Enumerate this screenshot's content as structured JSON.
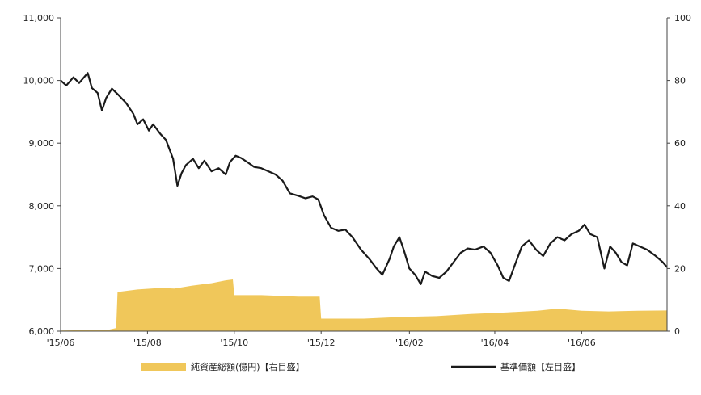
{
  "chart_data": {
    "type": "line",
    "title": "",
    "left_axis": {
      "range": [
        6000,
        11000
      ],
      "ticks": [
        6000,
        7000,
        8000,
        9000,
        10000,
        11000
      ],
      "tick_labels": [
        "6,000",
        "7,000",
        "8,000",
        "9,000",
        "10,000",
        "11,000"
      ]
    },
    "right_axis": {
      "range": [
        0,
        100
      ],
      "ticks": [
        0,
        20,
        40,
        60,
        80,
        100
      ],
      "tick_labels": [
        "0",
        "20",
        "40",
        "60",
        "80",
        "100"
      ]
    },
    "x_axis": {
      "range": [
        "2015-06-01",
        "2016-07-31"
      ],
      "ticks": [
        "2015-06-01",
        "2015-08-01",
        "2015-10-01",
        "2015-12-01",
        "2016-02-01",
        "2016-04-01",
        "2016-06-01"
      ],
      "tick_labels": [
        "'15/06",
        "'15/08",
        "'15/10",
        "'15/12",
        "'16/02",
        "'16/04",
        "'16/06"
      ]
    },
    "grid": false,
    "legend_position": "bottom",
    "series": [
      {
        "name": "純資産総額(億円)【右目盛】",
        "kind": "area",
        "axis": "right",
        "color": "#f0c75a",
        "points": [
          [
            "2015-06-01",
            0.2
          ],
          [
            "2015-06-20",
            0.3
          ],
          [
            "2015-07-05",
            0.5
          ],
          [
            "2015-07-10",
            1.0
          ],
          [
            "2015-07-11",
            12.5
          ],
          [
            "2015-07-25",
            13.3
          ],
          [
            "2015-08-10",
            13.8
          ],
          [
            "2015-08-20",
            13.6
          ],
          [
            "2015-09-01",
            14.5
          ],
          [
            "2015-09-15",
            15.3
          ],
          [
            "2015-09-25",
            16.2
          ],
          [
            "2015-09-30",
            16.5
          ],
          [
            "2015-10-01",
            11.5
          ],
          [
            "2015-10-20",
            11.5
          ],
          [
            "2015-11-15",
            11.0
          ],
          [
            "2015-11-30",
            11.0
          ],
          [
            "2015-12-01",
            4.0
          ],
          [
            "2015-12-31",
            4.0
          ],
          [
            "2016-01-25",
            4.5
          ],
          [
            "2016-02-20",
            4.8
          ],
          [
            "2016-03-15",
            5.5
          ],
          [
            "2016-04-10",
            6.0
          ],
          [
            "2016-05-01",
            6.5
          ],
          [
            "2016-05-15",
            7.2
          ],
          [
            "2016-06-01",
            6.5
          ],
          [
            "2016-06-20",
            6.3
          ],
          [
            "2016-07-10",
            6.5
          ],
          [
            "2016-07-31",
            6.6
          ]
        ]
      },
      {
        "name": "基準価額【左目盛】",
        "kind": "line",
        "axis": "left",
        "color": "#1a1a1a",
        "points": [
          [
            "2015-06-01",
            10000
          ],
          [
            "2015-06-05",
            9920
          ],
          [
            "2015-06-10",
            10050
          ],
          [
            "2015-06-14",
            9960
          ],
          [
            "2015-06-20",
            10120
          ],
          [
            "2015-06-23",
            9880
          ],
          [
            "2015-06-27",
            9800
          ],
          [
            "2015-06-30",
            9520
          ],
          [
            "2015-07-03",
            9720
          ],
          [
            "2015-07-07",
            9870
          ],
          [
            "2015-07-12",
            9760
          ],
          [
            "2015-07-17",
            9640
          ],
          [
            "2015-07-22",
            9470
          ],
          [
            "2015-07-25",
            9300
          ],
          [
            "2015-07-29",
            9380
          ],
          [
            "2015-08-02",
            9200
          ],
          [
            "2015-08-05",
            9300
          ],
          [
            "2015-08-10",
            9150
          ],
          [
            "2015-08-14",
            9050
          ],
          [
            "2015-08-19",
            8750
          ],
          [
            "2015-08-22",
            8320
          ],
          [
            "2015-08-25",
            8520
          ],
          [
            "2015-08-28",
            8650
          ],
          [
            "2015-09-02",
            8750
          ],
          [
            "2015-09-06",
            8600
          ],
          [
            "2015-09-10",
            8720
          ],
          [
            "2015-09-15",
            8550
          ],
          [
            "2015-09-20",
            8600
          ],
          [
            "2015-09-25",
            8500
          ],
          [
            "2015-09-28",
            8700
          ],
          [
            "2015-10-02",
            8800
          ],
          [
            "2015-10-06",
            8760
          ],
          [
            "2015-10-10",
            8700
          ],
          [
            "2015-10-15",
            8620
          ],
          [
            "2015-10-20",
            8600
          ],
          [
            "2015-10-25",
            8550
          ],
          [
            "2015-10-30",
            8500
          ],
          [
            "2015-11-04",
            8400
          ],
          [
            "2015-11-09",
            8200
          ],
          [
            "2015-11-15",
            8160
          ],
          [
            "2015-11-20",
            8120
          ],
          [
            "2015-11-25",
            8150
          ],
          [
            "2015-11-29",
            8100
          ],
          [
            "2015-12-03",
            7850
          ],
          [
            "2015-12-08",
            7650
          ],
          [
            "2015-12-13",
            7600
          ],
          [
            "2015-12-18",
            7620
          ],
          [
            "2015-12-23",
            7500
          ],
          [
            "2015-12-29",
            7300
          ],
          [
            "2016-01-04",
            7150
          ],
          [
            "2016-01-09",
            7000
          ],
          [
            "2016-01-13",
            6900
          ],
          [
            "2016-01-18",
            7150
          ],
          [
            "2016-01-21",
            7350
          ],
          [
            "2016-01-25",
            7500
          ],
          [
            "2016-01-28",
            7300
          ],
          [
            "2016-02-01",
            7000
          ],
          [
            "2016-02-05",
            6900
          ],
          [
            "2016-02-09",
            6750
          ],
          [
            "2016-02-12",
            6950
          ],
          [
            "2016-02-17",
            6880
          ],
          [
            "2016-02-22",
            6850
          ],
          [
            "2016-02-27",
            6950
          ],
          [
            "2016-03-03",
            7100
          ],
          [
            "2016-03-08",
            7250
          ],
          [
            "2016-03-13",
            7320
          ],
          [
            "2016-03-18",
            7300
          ],
          [
            "2016-03-24",
            7350
          ],
          [
            "2016-03-29",
            7250
          ],
          [
            "2016-04-03",
            7050
          ],
          [
            "2016-04-07",
            6850
          ],
          [
            "2016-04-11",
            6800
          ],
          [
            "2016-04-15",
            7050
          ],
          [
            "2016-04-20",
            7350
          ],
          [
            "2016-04-25",
            7450
          ],
          [
            "2016-04-30",
            7300
          ],
          [
            "2016-05-05",
            7200
          ],
          [
            "2016-05-10",
            7400
          ],
          [
            "2016-05-15",
            7500
          ],
          [
            "2016-05-20",
            7450
          ],
          [
            "2016-05-25",
            7550
          ],
          [
            "2016-05-30",
            7600
          ],
          [
            "2016-06-03",
            7700
          ],
          [
            "2016-06-07",
            7550
          ],
          [
            "2016-06-12",
            7500
          ],
          [
            "2016-06-17",
            7000
          ],
          [
            "2016-06-21",
            7350
          ],
          [
            "2016-06-25",
            7250
          ],
          [
            "2016-06-29",
            7100
          ],
          [
            "2016-07-03",
            7050
          ],
          [
            "2016-07-07",
            7400
          ],
          [
            "2016-07-12",
            7350
          ],
          [
            "2016-07-17",
            7300
          ],
          [
            "2016-07-23",
            7200
          ],
          [
            "2016-07-28",
            7100
          ],
          [
            "2016-07-31",
            7020
          ]
        ]
      }
    ]
  }
}
